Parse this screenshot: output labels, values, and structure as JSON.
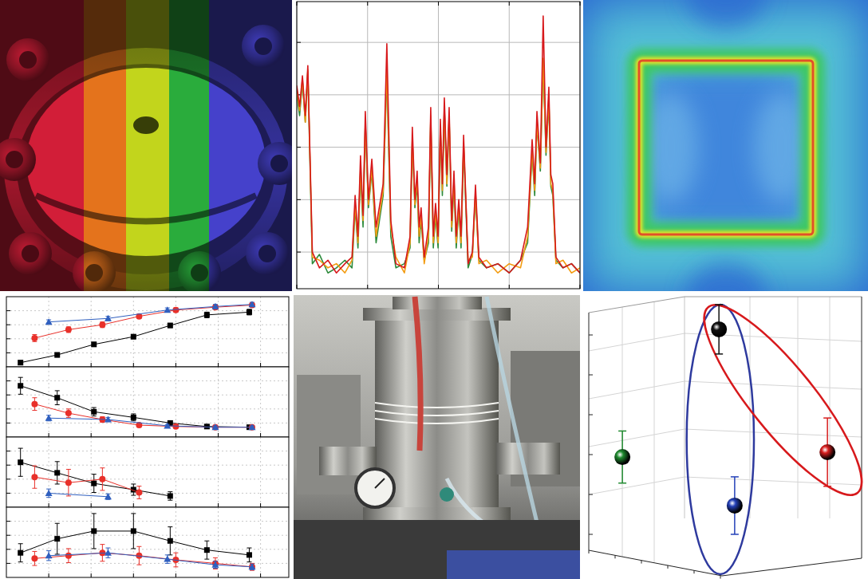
{
  "chart_data": [
    {
      "type": "line",
      "log": "y",
      "grid": true,
      "tick_labels": false,
      "x": [
        0,
        1,
        2,
        3,
        3.9,
        5.5,
        8,
        11,
        14,
        17,
        19.5,
        20.6,
        21.6,
        22.5,
        23.4,
        24.2,
        25.3,
        26.5,
        28,
        30.5,
        31.8,
        33.2,
        35,
        38,
        40,
        40.8,
        41.7,
        42.5,
        43.2,
        43.9,
        45,
        46.5,
        47.3,
        48.2,
        49,
        49.9,
        50.7,
        51.4,
        52.1,
        53,
        53.8,
        54.7,
        55.5,
        56.3,
        57.2,
        58,
        58.9,
        60.5,
        62,
        63.1,
        64.3,
        67,
        71,
        75,
        79,
        81.5,
        83.1,
        84,
        84.8,
        86,
        87,
        88,
        89,
        89.7,
        90.4,
        91.5,
        94,
        97,
        100
      ],
      "xlim": [
        0,
        100
      ],
      "xticks": [
        0,
        25,
        50,
        75,
        100
      ],
      "ylim": [
        2e-06,
        0.6
      ],
      "yticks": [
        1e-05,
        0.0001,
        0.001,
        0.01,
        0.1
      ],
      "series": [
        {
          "color": "#2e8b3c",
          "values": [
            0.01,
            0.004,
            0.018,
            0.003,
            0.028,
            6e-06,
            9e-06,
            4e-06,
            5e-06,
            7e-06,
            5e-06,
            7e-05,
            1.2e-05,
            0.00035,
            3e-05,
            0.0028,
            7e-05,
            0.00035,
            1.5e-05,
            0.00012,
            0.025,
            2e-05,
            5e-06,
            6e-06,
            1.2e-05,
            0.0014,
            7e-05,
            0.0002,
            1.5e-05,
            4e-05,
            7e-06,
            1.5e-05,
            0.0035,
            1.2e-05,
            5e-05,
            1.2e-05,
            0.0022,
            0.00012,
            0.0055,
            0.00018,
            0.0035,
            2.5e-05,
            0.0002,
            1.2e-05,
            7e-05,
            1.2e-05,
            0.001,
            5e-06,
            9e-06,
            0.00012,
            7e-06,
            5e-06,
            6e-06,
            4e-06,
            7e-06,
            1.5e-05,
            0.0008,
            0.00012,
            0.0028,
            0.00035,
            0.045,
            0.0007,
            0.008,
            0.00018,
            0.00012,
            7e-06,
            5e-06,
            6e-06,
            4e-06
          ]
        },
        {
          "color": "#f39c12",
          "values": [
            0.012,
            0.005,
            0.02,
            0.003,
            0.03,
            8e-06,
            7e-06,
            5e-06,
            6e-06,
            4e-06,
            7e-06,
            8e-05,
            1.5e-05,
            0.0004,
            4e-05,
            0.003,
            8e-05,
            0.0004,
            2e-05,
            0.00015,
            0.03,
            3e-05,
            8e-06,
            4e-06,
            1.5e-05,
            0.0015,
            8e-05,
            0.00025,
            2e-05,
            5e-05,
            6e-06,
            2e-05,
            0.004,
            1.5e-05,
            6e-05,
            1.5e-05,
            0.0025,
            0.00015,
            0.006,
            0.0002,
            0.004,
            3e-05,
            0.00025,
            1.5e-05,
            8e-05,
            1.5e-05,
            0.0012,
            7e-06,
            8e-06,
            0.00014,
            6e-06,
            7e-06,
            4e-06,
            6e-06,
            5e-06,
            2e-05,
            0.0009,
            0.00015,
            0.003,
            0.0004,
            0.05,
            0.0008,
            0.009,
            0.0002,
            0.00015,
            6e-06,
            7e-06,
            4e-06,
            5e-06
          ]
        },
        {
          "color": "#d7191c",
          "values": [
            0.015,
            0.006,
            0.023,
            0.004,
            0.036,
            1e-05,
            5e-06,
            7e-06,
            4e-06,
            6e-06,
            8e-06,
            0.00012,
            2e-05,
            0.00069,
            5e-05,
            0.0048,
            0.0001,
            0.00059,
            3e-05,
            0.0002,
            0.094,
            4e-05,
            6e-06,
            5e-06,
            2e-05,
            0.0024,
            0.0001,
            0.00035,
            3e-05,
            7e-05,
            8e-06,
            3e-05,
            0.0057,
            2e-05,
            8.5e-05,
            2e-05,
            0.0034,
            0.0002,
            0.0087,
            0.0003,
            0.0057,
            4e-05,
            0.00035,
            2e-05,
            0.0001,
            2e-05,
            0.0017,
            6e-06,
            1e-05,
            0.00019,
            8e-06,
            5e-06,
            6e-06,
            4e-06,
            7e-06,
            3e-05,
            0.0014,
            0.0002,
            0.0048,
            0.0005,
            0.32,
            0.001,
            0.014,
            0.0003,
            0.0002,
            8e-06,
            5e-06,
            6e-06,
            4e-06
          ]
        }
      ]
    },
    {
      "type": "line",
      "grid": true,
      "tick_labels": false,
      "xlim": [
        0,
        100
      ],
      "xticks": [
        15,
        30,
        45,
        60,
        75,
        90
      ],
      "ylim": [
        0,
        10
      ],
      "yticks": [
        2,
        4,
        6,
        8
      ],
      "series": [
        {
          "color": "#000000",
          "marker": "square",
          "x": [
            5,
            18,
            31,
            45,
            58,
            71,
            86
          ],
          "values": [
            0.6,
            1.7,
            3.2,
            4.3,
            5.9,
            7.4,
            7.8
          ],
          "errors": [
            0.3,
            0.3,
            0.3,
            0.3,
            0.3,
            0.4,
            0.4
          ]
        },
        {
          "color": "#e8302a",
          "marker": "circle",
          "x": [
            10,
            22,
            34,
            47,
            60,
            74,
            87
          ],
          "values": [
            4.1,
            5.3,
            6.0,
            7.2,
            8.1,
            8.5,
            8.8
          ],
          "errors": [
            0.5,
            0.4,
            0.4,
            0.3,
            0.3,
            0.3,
            0.3
          ]
        },
        {
          "color": "#2f5fbf",
          "marker": "triangle",
          "x": [
            15,
            36,
            57,
            74,
            87
          ],
          "values": [
            6.4,
            6.9,
            8.1,
            8.6,
            8.9
          ],
          "errors": [
            0.3,
            0.3,
            0.3,
            0.3,
            0.3
          ]
        }
      ]
    },
    {
      "type": "line",
      "grid": true,
      "tick_labels": false,
      "xlim": [
        0,
        100
      ],
      "xticks": [
        15,
        30,
        45,
        60,
        75,
        90
      ],
      "ylim": [
        0,
        10
      ],
      "yticks": [
        2,
        4,
        6,
        8
      ],
      "series": [
        {
          "color": "#000000",
          "marker": "square",
          "x": [
            5,
            18,
            31,
            45,
            58,
            71,
            86
          ],
          "values": [
            7.3,
            5.6,
            3.6,
            2.8,
            2.0,
            1.5,
            1.4
          ],
          "errors": [
            1.2,
            1.0,
            0.6,
            0.5,
            0.3,
            0.2,
            0.2
          ]
        },
        {
          "color": "#e8302a",
          "marker": "circle",
          "x": [
            10,
            22,
            34,
            47,
            60,
            74,
            87
          ],
          "values": [
            4.7,
            3.4,
            2.5,
            1.7,
            1.5,
            1.4,
            1.4
          ],
          "errors": [
            0.9,
            0.6,
            0.4,
            0.3,
            0.2,
            0.2,
            0.2
          ]
        },
        {
          "color": "#2f5fbf",
          "marker": "triangle",
          "x": [
            15,
            36,
            57,
            74,
            87
          ],
          "values": [
            2.7,
            2.5,
            1.6,
            1.4,
            1.4
          ],
          "errors": [
            0.4,
            0.3,
            0.2,
            0.2,
            0.2
          ]
        }
      ]
    },
    {
      "type": "line",
      "grid": true,
      "tick_labels": false,
      "xlim": [
        0,
        100
      ],
      "xticks": [
        15,
        30,
        45,
        60,
        75,
        90
      ],
      "ylim": [
        0,
        10
      ],
      "yticks": [
        2,
        4,
        6,
        8
      ],
      "series": [
        {
          "color": "#000000",
          "marker": "square",
          "x": [
            5,
            18,
            31,
            45,
            58,
            71,
            86
          ],
          "values": [
            6.4,
            4.9,
            3.4,
            2.5,
            1.6,
            null,
            null
          ],
          "errors": [
            2.0,
            1.6,
            1.3,
            0.8,
            0.6,
            null,
            null
          ]
        },
        {
          "color": "#e8302a",
          "marker": "circle",
          "x": [
            10,
            22,
            34,
            47,
            60,
            74,
            87
          ],
          "values": [
            4.3,
            3.5,
            4.0,
            2.1,
            null,
            null,
            null
          ],
          "errors": [
            1.6,
            1.9,
            1.6,
            0.9,
            null,
            null,
            null
          ]
        },
        {
          "color": "#2f5fbf",
          "marker": "triangle",
          "x": [
            15,
            36,
            57,
            74,
            87
          ],
          "values": [
            2.0,
            1.5,
            null,
            null,
            null
          ],
          "errors": [
            0.6,
            0.4,
            null,
            null,
            null
          ]
        }
      ]
    },
    {
      "type": "line",
      "grid": true,
      "tick_labels": false,
      "xlim": [
        0,
        100
      ],
      "xticks": [
        15,
        30,
        45,
        60,
        75,
        90
      ],
      "ylim": [
        0,
        10
      ],
      "yticks": [
        2,
        4,
        6,
        8
      ],
      "series": [
        {
          "color": "#000000",
          "marker": "square",
          "x": [
            5,
            18,
            31,
            45,
            58,
            71,
            86
          ],
          "values": [
            3.5,
            5.5,
            6.6,
            6.6,
            5.2,
            3.9,
            3.2
          ],
          "errors": [
            1.3,
            2.2,
            2.5,
            2.5,
            2.0,
            1.3,
            1.0
          ]
        },
        {
          "color": "#e8302a",
          "marker": "circle",
          "x": [
            10,
            22,
            34,
            47,
            60,
            74,
            87
          ],
          "values": [
            2.7,
            3.1,
            3.5,
            3.1,
            2.5,
            2.0,
            1.5
          ],
          "errors": [
            1.0,
            1.0,
            1.2,
            1.3,
            1.0,
            0.8,
            0.5
          ]
        },
        {
          "color": "#2f5fbf",
          "marker": "triangle",
          "x": [
            15,
            36,
            57,
            74,
            87
          ],
          "values": [
            3.1,
            3.5,
            2.6,
            1.8,
            1.5
          ],
          "errors": [
            0.7,
            0.7,
            0.6,
            0.5,
            0.4
          ]
        }
      ]
    },
    {
      "type": "scatter",
      "tick_labels": false,
      "xlim": [
        0,
        100
      ],
      "ylim": [
        0,
        105
      ],
      "series": [
        {
          "color": "#111111",
          "marker": "sphere",
          "x": [
            47.4
          ],
          "values": [
            90.9
          ],
          "errors": [
            9.1
          ]
        },
        {
          "color": "#1e8a2e",
          "marker": "sphere",
          "x": [
            11.8
          ],
          "values": [
            43.8
          ],
          "errors": [
            9.6
          ]
        },
        {
          "color": "#2340b8",
          "marker": "sphere",
          "x": [
            53.2
          ],
          "values": [
            25.9
          ],
          "errors": [
            10.6
          ]
        },
        {
          "color": "#d81e1e",
          "marker": "sphere",
          "x": [
            87.4
          ],
          "values": [
            45.6
          ],
          "errors": [
            12.6
          ]
        }
      ],
      "ellipses": [
        {
          "color": "#2e3a9e",
          "major": [
            [
              47.9,
              100
            ],
            [
              47.9,
              0.6
            ]
          ],
          "minor": 12.4
        },
        {
          "color": "#d7191c",
          "major": [
            [
              43.5,
              99.1
            ],
            [
              98.5,
              30.6
            ]
          ],
          "minor": 11.8
        }
      ]
    }
  ]
}
